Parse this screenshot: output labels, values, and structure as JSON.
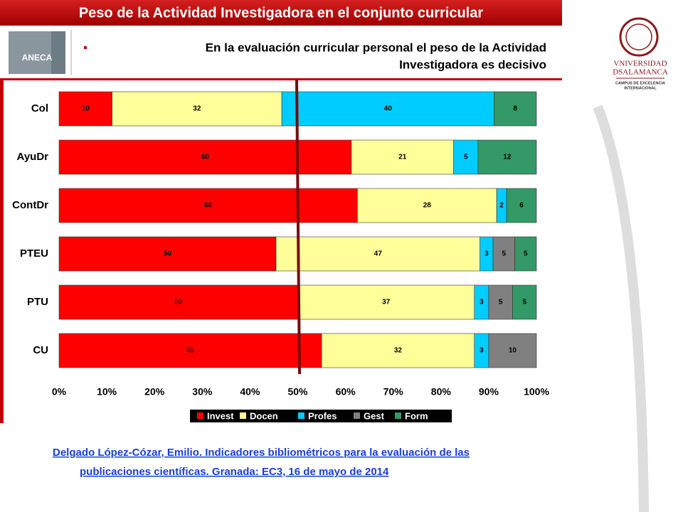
{
  "header": {
    "title": "Peso de la Actividad Investigadora en el conjunto curricular",
    "logo": "ANECA"
  },
  "bullet": {
    "lines": [
      "En la evaluación curricular personal el peso de la Actividad",
      "Investigadora es decisivo"
    ]
  },
  "university": {
    "name_lines": [
      "VNIVERSIDAD",
      "DSALAMANCA"
    ],
    "campus_lines": [
      "CAMPUS DE EXCELENCIA",
      "INTERNACIONAL"
    ]
  },
  "citation": {
    "lines": [
      "Delgado López-Cózar, Emilio. Indicadores bibliométricos para la evaluación de las",
      "publicaciones científicas. Granada: EC3, 16 de mayo de 2014"
    ]
  },
  "chart_data": {
    "type": "bar",
    "orientation": "horizontal",
    "stacked_percent": true,
    "categories": [
      "Col",
      "AyuDr",
      "ContDr",
      "PTEU",
      "PTU",
      "CU"
    ],
    "series": [
      {
        "name": "Invest",
        "color": "#ff0000",
        "values": [
          10,
          60,
          60,
          50,
          50,
          55
        ]
      },
      {
        "name": "Docen",
        "color": "#ffff99",
        "values": [
          32,
          21,
          28,
          47,
          37,
          32
        ]
      },
      {
        "name": "Profes",
        "color": "#00ccff",
        "values": [
          40,
          5,
          2,
          3,
          3,
          3
        ]
      },
      {
        "name": "Gest",
        "color": "#808080",
        "values": [
          null,
          null,
          null,
          5,
          5,
          10
        ]
      },
      {
        "name": "Form",
        "color": "#339966",
        "values": [
          8,
          12,
          6,
          5,
          5,
          null
        ]
      }
    ],
    "xlim": [
      0,
      100
    ],
    "xticks": [
      {
        "value": 0,
        "label": "0%"
      },
      {
        "value": 10,
        "label": "10%"
      },
      {
        "value": 20,
        "label": "20%"
      },
      {
        "value": 30,
        "label": "30%"
      },
      {
        "value": 40,
        "label": "40%"
      },
      {
        "value": 50,
        "label": "50%"
      },
      {
        "value": 60,
        "label": "60%"
      },
      {
        "value": 70,
        "label": "70%"
      },
      {
        "value": 80,
        "label": "80%"
      },
      {
        "value": 90,
        "label": "90%"
      },
      {
        "value": 100,
        "label": "100%"
      }
    ],
    "grid": false,
    "legend": "bottom"
  }
}
